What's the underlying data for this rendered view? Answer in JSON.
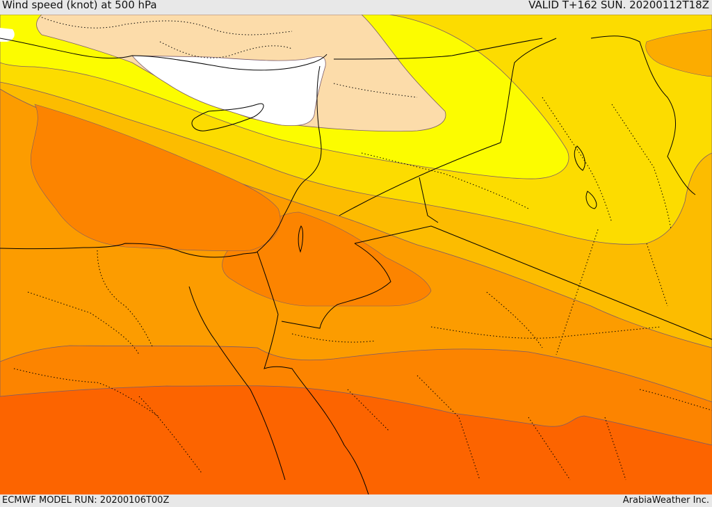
{
  "header": {
    "title": "Wind speed (knot) at 500 hPa",
    "valid": "VALID T+162 SUN. 20200112T18Z"
  },
  "footer": {
    "run": "ECMWF MODEL RUN: 20200106T00Z",
    "credit": "ArabiaWeather Inc."
  },
  "colors": {
    "white": "#ffffff",
    "peach": "#fcdcaa",
    "yellow": "#fcfc00",
    "gold": "#fcdc00",
    "amber": "#fcbc00",
    "orange_light": "#fc9c00",
    "orange": "#fc8400",
    "orange_dark": "#fc6400"
  }
}
